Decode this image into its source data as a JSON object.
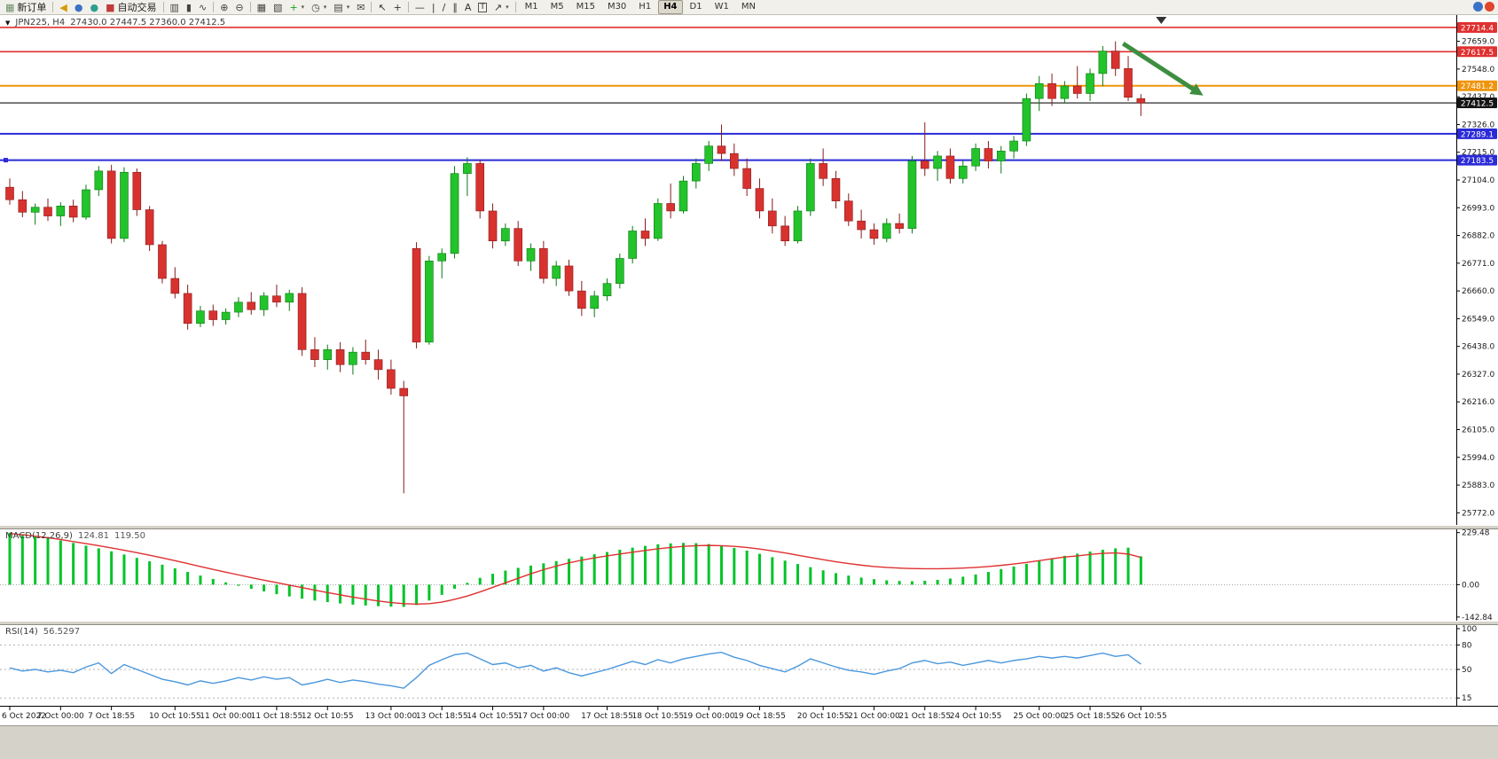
{
  "toolbar": {
    "caret_glyph": "▾",
    "items": [
      {
        "type": "button",
        "name": "new-order-button",
        "glyph": "▦",
        "glyph_color": "#6a8f6a",
        "label": "新订单"
      },
      {
        "type": "sep"
      },
      {
        "type": "icon",
        "name": "sound-alert-icon",
        "glyph": "◀",
        "glyph_color": "#d69a00"
      },
      {
        "type": "icon",
        "name": "community-icon",
        "glyph": "●",
        "glyph_color": "#3b72c8"
      },
      {
        "type": "icon",
        "name": "market-news-icon",
        "glyph": "●",
        "glyph_color": "#2f9e8f"
      },
      {
        "type": "button",
        "name": "autotrading-button",
        "glyph": "■",
        "glyph_color": "#c23b3b",
        "label": "自动交易"
      },
      {
        "type": "sep"
      },
      {
        "type": "icon",
        "name": "ohlc-bars-icon",
        "glyph": "▥",
        "glyph_color": "#444"
      },
      {
        "type": "icon",
        "name": "candlestick-icon",
        "glyph": "▮",
        "glyph_color": "#444"
      },
      {
        "type": "icon",
        "name": "line-chart-icon",
        "glyph": "∿",
        "glyph_color": "#444"
      },
      {
        "type": "sep"
      },
      {
        "type": "icon",
        "name": "zoom-in-icon",
        "glyph": "⊕",
        "glyph_color": "#444"
      },
      {
        "type": "icon",
        "name": "zoom-out-icon",
        "glyph": "⊖",
        "glyph_color": "#444"
      },
      {
        "type": "sep"
      },
      {
        "type": "icon",
        "name": "tile-windows-icon",
        "glyph": "▦",
        "glyph_color": "#444"
      },
      {
        "type": "icon",
        "name": "cascade-windows-icon",
        "glyph": "▧",
        "glyph_color": "#444"
      },
      {
        "type": "icon",
        "name": "indicators-button",
        "glyph": "+",
        "glyph_color": "#1e9e1e",
        "caret": true
      },
      {
        "type": "icon",
        "name": "periods-dropdown-icon",
        "glyph": "◷",
        "glyph_color": "#444",
        "caret": true
      },
      {
        "type": "icon",
        "name": "templates-icon",
        "glyph": "▤",
        "glyph_color": "#444",
        "caret": true
      },
      {
        "type": "icon",
        "name": "mail-icon",
        "glyph": "✉",
        "glyph_color": "#444"
      },
      {
        "type": "sep"
      },
      {
        "type": "icon",
        "name": "cursor-tool-icon",
        "glyph": "↖",
        "glyph_color": "#333"
      },
      {
        "type": "icon",
        "name": "crosshair-tool-icon",
        "glyph": "+",
        "glyph_color": "#333"
      },
      {
        "type": "sep"
      },
      {
        "type": "icon",
        "name": "hline-tool-icon",
        "glyph": "—",
        "glyph_color": "#333"
      },
      {
        "type": "icon",
        "name": "vline-tool-icon",
        "glyph": "|",
        "glyph_color": "#333"
      },
      {
        "type": "icon",
        "name": "trendline-tool-icon",
        "glyph": "/",
        "glyph_color": "#333"
      },
      {
        "type": "icon",
        "name": "channel-tool-icon",
        "glyph": "∥",
        "glyph_color": "#333"
      },
      {
        "type": "icon",
        "name": "text-tool-icon",
        "glyph": "A",
        "glyph_color": "#333"
      },
      {
        "type": "icon",
        "name": "label-tool-icon",
        "glyph": "T",
        "glyph_color": "#333",
        "boxed": true
      },
      {
        "type": "icon",
        "name": "arrows-tool-icon",
        "glyph": "↗",
        "glyph_color": "#333",
        "caret": true
      },
      {
        "type": "sep"
      },
      {
        "type": "timeframes"
      }
    ],
    "timeframes": [
      "M1",
      "M5",
      "M15",
      "M30",
      "H1",
      "H4",
      "D1",
      "W1",
      "MN"
    ],
    "active_timeframe": "H4",
    "right_icons": [
      {
        "name": "connection-status-icon",
        "color": "#3b72c8"
      },
      {
        "name": "alert-badge",
        "color": "#e1452c"
      }
    ]
  },
  "chart": {
    "dropdown_glyph": "▼",
    "symbol_period": "JPN225, H4",
    "ohlc_text": "27430.0 27447.5 27360.0 27412.5"
  },
  "chart_data": {
    "type": "candlestick",
    "symbol": "JPN225",
    "timeframe": "H4",
    "last_ohlc": {
      "open": 27430.0,
      "high": 27447.5,
      "low": 27360.0,
      "close": 27412.5
    },
    "colors": {
      "up": "#23c32b",
      "up_border": "#0b7a12",
      "down": "#d8322f",
      "down_border": "#871b1b"
    },
    "price_axis": {
      "ticks": [
        "27659.0",
        "27548.0",
        "27437.0",
        "27326.0",
        "27215.0",
        "27104.0",
        "26993.0",
        "26882.0",
        "26771.0",
        "26660.0",
        "26549.0",
        "26438.0",
        "26327.0",
        "26216.0",
        "26105.0",
        "25994.0",
        "25883.0",
        "25772.0"
      ]
    },
    "hlines": [
      {
        "price": 27714.4,
        "label": "27714.4",
        "color": "#e03030",
        "width": 1.6
      },
      {
        "price": 27617.5,
        "label": "27617.5",
        "color": "#e03030",
        "width": 1.6
      },
      {
        "price": 27481.2,
        "label": "27481.2",
        "color": "#f0940a",
        "width": 2
      },
      {
        "price": 27412.5,
        "label": "27412.5",
        "color": "#151515",
        "width": 1.2,
        "last_price": true
      },
      {
        "price": 27289.1,
        "label": "27289.1",
        "color": "#2a2ad8",
        "width": 2
      },
      {
        "price": 27183.5,
        "label": "27183.5",
        "color": "#2a2ad8",
        "width": 2,
        "selected": true
      }
    ],
    "candles": [
      [
        27075,
        27110,
        27005,
        27025
      ],
      [
        27025,
        27060,
        26955,
        26975
      ],
      [
        26975,
        27010,
        26925,
        26995
      ],
      [
        26995,
        27030,
        26940,
        26960
      ],
      [
        26960,
        27015,
        26920,
        27000
      ],
      [
        27000,
        27025,
        26935,
        26955
      ],
      [
        26955,
        27085,
        26945,
        27065
      ],
      [
        27065,
        27160,
        27040,
        27140
      ],
      [
        27140,
        27165,
        26850,
        26870
      ],
      [
        26870,
        27155,
        26855,
        27135
      ],
      [
        27135,
        27150,
        26960,
        26985
      ],
      [
        26985,
        27000,
        26820,
        26845
      ],
      [
        26845,
        26860,
        26690,
        26710
      ],
      [
        26710,
        26755,
        26630,
        26650
      ],
      [
        26650,
        26685,
        26505,
        26530
      ],
      [
        26530,
        26600,
        26515,
        26580
      ],
      [
        26580,
        26605,
        26520,
        26545
      ],
      [
        26545,
        26590,
        26525,
        26575
      ],
      [
        26575,
        26635,
        26555,
        26615
      ],
      [
        26615,
        26655,
        26565,
        26585
      ],
      [
        26585,
        26655,
        26560,
        26640
      ],
      [
        26640,
        26685,
        26595,
        26615
      ],
      [
        26615,
        26665,
        26580,
        26650
      ],
      [
        26650,
        26675,
        26400,
        26425
      ],
      [
        26425,
        26475,
        26355,
        26385
      ],
      [
        26385,
        26445,
        26345,
        26425
      ],
      [
        26425,
        26455,
        26335,
        26365
      ],
      [
        26365,
        26435,
        26325,
        26415
      ],
      [
        26415,
        26465,
        26365,
        26385
      ],
      [
        26385,
        26425,
        26305,
        26345
      ],
      [
        26345,
        26385,
        26245,
        26270
      ],
      [
        26270,
        26300,
        25850,
        26240
      ],
      [
        26830,
        26855,
        26430,
        26455
      ],
      [
        26455,
        26800,
        26445,
        26780
      ],
      [
        26780,
        26830,
        26710,
        26810
      ],
      [
        26810,
        27160,
        26790,
        27130
      ],
      [
        27130,
        27195,
        27040,
        27170
      ],
      [
        27170,
        27185,
        26950,
        26980
      ],
      [
        26980,
        27010,
        26830,
        26860
      ],
      [
        26860,
        26930,
        26840,
        26910
      ],
      [
        26910,
        26940,
        26760,
        26780
      ],
      [
        26780,
        26850,
        26740,
        26830
      ],
      [
        26830,
        26860,
        26690,
        26710
      ],
      [
        26710,
        26780,
        26680,
        26760
      ],
      [
        26760,
        26785,
        26640,
        26660
      ],
      [
        26660,
        26700,
        26560,
        26590
      ],
      [
        26590,
        26660,
        26555,
        26640
      ],
      [
        26640,
        26710,
        26620,
        26690
      ],
      [
        26690,
        26810,
        26670,
        26790
      ],
      [
        26790,
        26920,
        26770,
        26900
      ],
      [
        26900,
        26950,
        26840,
        26870
      ],
      [
        26870,
        27030,
        26860,
        27010
      ],
      [
        27010,
        27090,
        26950,
        26980
      ],
      [
        26980,
        27120,
        26970,
        27100
      ],
      [
        27100,
        27190,
        27070,
        27170
      ],
      [
        27170,
        27260,
        27140,
        27240
      ],
      [
        27240,
        27326,
        27180,
        27210
      ],
      [
        27210,
        27250,
        27120,
        27150
      ],
      [
        27150,
        27190,
        27040,
        27070
      ],
      [
        27070,
        27110,
        26950,
        26980
      ],
      [
        26980,
        27030,
        26890,
        26920
      ],
      [
        26920,
        26960,
        26840,
        26860
      ],
      [
        26860,
        27000,
        26850,
        26980
      ],
      [
        26980,
        27190,
        26960,
        27170
      ],
      [
        27170,
        27230,
        27080,
        27110
      ],
      [
        27110,
        27140,
        26990,
        27020
      ],
      [
        27020,
        27050,
        26920,
        26940
      ],
      [
        26940,
        26985,
        26870,
        26905
      ],
      [
        26905,
        26930,
        26845,
        26870
      ],
      [
        26870,
        26950,
        26855,
        26930
      ],
      [
        26930,
        26970,
        26890,
        26910
      ],
      [
        26910,
        27200,
        26890,
        27180
      ],
      [
        27180,
        27335,
        27120,
        27150
      ],
      [
        27150,
        27220,
        27100,
        27200
      ],
      [
        27200,
        27230,
        27090,
        27110
      ],
      [
        27110,
        27180,
        27090,
        27160
      ],
      [
        27160,
        27250,
        27140,
        27230
      ],
      [
        27230,
        27260,
        27150,
        27180
      ],
      [
        27180,
        27240,
        27130,
        27220
      ],
      [
        27220,
        27280,
        27190,
        27260
      ],
      [
        27260,
        27450,
        27240,
        27430
      ],
      [
        27430,
        27520,
        27380,
        27490
      ],
      [
        27490,
        27530,
        27400,
        27430
      ],
      [
        27430,
        27500,
        27410,
        27480
      ],
      [
        27480,
        27560,
        27430,
        27450
      ],
      [
        27450,
        27550,
        27420,
        27530
      ],
      [
        27530,
        27640,
        27480,
        27620
      ],
      [
        27620,
        27659,
        27520,
        27550
      ],
      [
        27550,
        27600,
        27420,
        27435
      ],
      [
        27430,
        27447.5,
        27360,
        27412.5
      ]
    ],
    "time_labels": [
      {
        "t": "6 Oct 2022",
        "i": 0
      },
      {
        "t": "7 Oct 00:00",
        "i": 4
      },
      {
        "t": "7 Oct 18:55",
        "i": 8
      },
      {
        "t": "10 Oct 10:55",
        "i": 13
      },
      {
        "t": "11 Oct 00:00",
        "i": 17
      },
      {
        "t": "11 Oct 18:55",
        "i": 21
      },
      {
        "t": "12 Oct 10:55",
        "i": 25
      },
      {
        "t": "13 Oct 00:00",
        "i": 30
      },
      {
        "t": "13 Oct 18:55",
        "i": 34
      },
      {
        "t": "14 Oct 10:55",
        "i": 38
      },
      {
        "t": "17 Oct 00:00",
        "i": 42
      },
      {
        "t": "17 Oct 18:55",
        "i": 47
      },
      {
        "t": "18 Oct 10:55",
        "i": 51
      },
      {
        "t": "19 Oct 00:00",
        "i": 55
      },
      {
        "t": "19 Oct 18:55",
        "i": 59
      },
      {
        "t": "20 Oct 10:55",
        "i": 64
      },
      {
        "t": "21 Oct 00:00",
        "i": 68
      },
      {
        "t": "21 Oct 18:55",
        "i": 72
      },
      {
        "t": "24 Oct 10:55",
        "i": 76
      },
      {
        "t": "25 Oct 00:00",
        "i": 81
      },
      {
        "t": "25 Oct 18:55",
        "i": 85
      },
      {
        "t": "26 Oct 10:55",
        "i": 89
      }
    ],
    "shift_marker_index": 90.6,
    "arrow": {
      "i1": 87.6,
      "p1": 27650,
      "i2": 93.2,
      "p2": 27465,
      "color": "#3e8e41"
    },
    "macd": {
      "label": "MACD(12,26,9)",
      "value_main": "124.81",
      "value_signal": "119.50",
      "hist_color": "#00c428",
      "signal_color": "#e03030",
      "axis": [
        "229.48",
        "0.00",
        "-142.84"
      ],
      "histogram": [
        229,
        222,
        214,
        205,
        195,
        184,
        172,
        160,
        147,
        133,
        118,
        103,
        88,
        72,
        56,
        40,
        25,
        10,
        -5,
        -18,
        -30,
        -42,
        -52,
        -62,
        -70,
        -77,
        -83,
        -88,
        -92,
        -95,
        -97,
        -98,
        -90,
        -70,
        -45,
        -18,
        8,
        30,
        48,
        62,
        74,
        84,
        94,
        104,
        114,
        124,
        134,
        144,
        154,
        163,
        171,
        178,
        182,
        184,
        183,
        179,
        172,
        162,
        150,
        136,
        121,
        106,
        91,
        77,
        63,
        51,
        40,
        31,
        24,
        19,
        16,
        15,
        17,
        21,
        27,
        35,
        45,
        56,
        68,
        80,
        92,
        104,
        116,
        127,
        137,
        146,
        154,
        160,
        163,
        125
      ],
      "signal": [
        225,
        220,
        214,
        207,
        199,
        190,
        181,
        172,
        162,
        152,
        141,
        130,
        118,
        106,
        93,
        80,
        67,
        55,
        43,
        31,
        20,
        9,
        -2,
        -13,
        -24,
        -35,
        -45,
        -55,
        -64,
        -72,
        -79,
        -84,
        -86,
        -84,
        -77,
        -65,
        -50,
        -32,
        -12,
        8,
        28,
        48,
        66,
        82,
        96,
        108,
        118,
        127,
        135,
        143,
        151,
        158,
        164,
        169,
        172,
        173,
        172,
        169,
        164,
        157,
        149,
        140,
        130,
        120,
        110,
        101,
        93,
        86,
        80,
        76,
        73,
        71,
        70,
        70,
        71,
        73,
        76,
        80,
        85,
        91,
        98,
        106,
        114,
        122,
        127,
        133,
        138,
        140,
        135,
        120
      ]
    },
    "rsi": {
      "label": "RSI(14)",
      "value": "56.5297",
      "color": "#4a97dd",
      "axis": [
        "100",
        "80",
        "50",
        "15"
      ],
      "levels": [
        80,
        50,
        15
      ],
      "values": [
        52,
        48,
        50,
        47,
        49,
        46,
        53,
        58,
        45,
        56,
        50,
        44,
        38,
        35,
        31,
        36,
        33,
        36,
        40,
        37,
        41,
        38,
        40,
        31,
        34,
        38,
        34,
        37,
        35,
        32,
        30,
        27,
        40,
        55,
        62,
        68,
        70,
        63,
        56,
        58,
        52,
        55,
        48,
        52,
        46,
        42,
        46,
        50,
        55,
        60,
        56,
        62,
        58,
        63,
        66,
        69,
        71,
        65,
        61,
        55,
        51,
        47,
        54,
        63,
        58,
        53,
        49,
        47,
        44,
        48,
        51,
        58,
        61,
        57,
        59,
        55,
        58,
        61,
        58,
        61,
        63,
        66,
        64,
        66,
        64,
        67,
        70,
        66,
        68,
        56.5
      ]
    }
  }
}
